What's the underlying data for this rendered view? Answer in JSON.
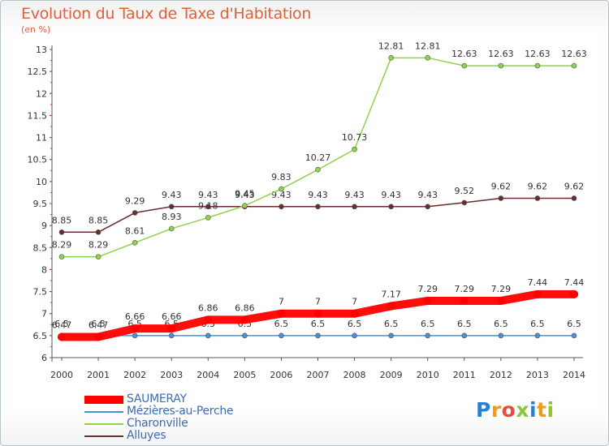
{
  "chart_data": {
    "type": "line",
    "title": "Evolution du Taux de Taxe d'Habitation",
    "subtitle": "(en %)",
    "x": [
      "2000",
      "2001",
      "2002",
      "2003",
      "2004",
      "2005",
      "2006",
      "2007",
      "2008",
      "2009",
      "2010",
      "2011",
      "2012",
      "2013",
      "2014"
    ],
    "ylim": [
      6,
      13
    ],
    "yticks": [
      "6",
      "6.5",
      "7",
      "7.5",
      "8",
      "8.5",
      "9",
      "9.5",
      "10",
      "10.5",
      "11",
      "11.5",
      "12",
      "12.5",
      "13"
    ],
    "grid": false,
    "legend_position": "bottom-left",
    "series": [
      {
        "name": "SAUMERAY",
        "color": "#ff0000",
        "values": [
          6.47,
          6.47,
          6.66,
          6.66,
          6.86,
          6.86,
          7,
          7,
          7,
          7.17,
          7.29,
          7.29,
          7.29,
          7.44,
          7.44
        ],
        "labels": [
          "6.47",
          "6.47",
          "6.66",
          "6.66",
          "6.86",
          "6.86",
          "7",
          "7",
          "7",
          "7.17",
          "7.29",
          "7.29",
          "7.29",
          "7.44",
          "7.44"
        ]
      },
      {
        "name": "Mézières-au-Perche",
        "color": "#4a90d9",
        "values": [
          6.5,
          6.5,
          6.5,
          6.5,
          6.5,
          6.5,
          6.5,
          6.5,
          6.5,
          6.5,
          6.5,
          6.5,
          6.5,
          6.5,
          6.5
        ],
        "labels": [
          "6.5",
          "6.5",
          "6.5",
          "6.5",
          "6.5",
          "6.5",
          "6.5",
          "6.5",
          "6.5",
          "6.5",
          "6.5",
          "6.5",
          "6.5",
          "6.5",
          "6.5"
        ]
      },
      {
        "name": "Charonville",
        "color": "#8ed34a",
        "values": [
          8.29,
          8.29,
          8.61,
          8.93,
          9.18,
          9.45,
          9.83,
          10.27,
          10.73,
          12.81,
          12.81,
          12.63,
          12.63,
          12.63,
          12.63
        ],
        "labels": [
          "8.29",
          "8.29",
          "8.61",
          "8.93",
          "9.18",
          "9.45",
          "9.83",
          "10.27",
          "10.73",
          "12.81",
          "12.81",
          "12.63",
          "12.63",
          "12.63",
          "12.63"
        ]
      },
      {
        "name": "Alluyes",
        "color": "#6b2c2c",
        "values": [
          8.85,
          8.85,
          9.29,
          9.43,
          9.43,
          9.43,
          9.43,
          9.43,
          9.43,
          9.43,
          9.43,
          9.52,
          9.62,
          9.62,
          9.62
        ],
        "labels": [
          "8.85",
          "8.85",
          "9.29",
          "9.43",
          "9.43",
          "9.43",
          "9.43",
          "9.43",
          "9.43",
          "9.43",
          "9.43",
          "9.52",
          "9.62",
          "9.62",
          "9.62"
        ]
      }
    ]
  },
  "logo": {
    "letters": [
      "P",
      "r",
      "o",
      "x",
      "i",
      "t",
      "i"
    ],
    "colors": [
      "#2a7fd4",
      "#f39c12",
      "#e74c3c",
      "#8cc63f",
      "#2a7fd4",
      "#f39c12",
      "#8cc63f"
    ]
  }
}
